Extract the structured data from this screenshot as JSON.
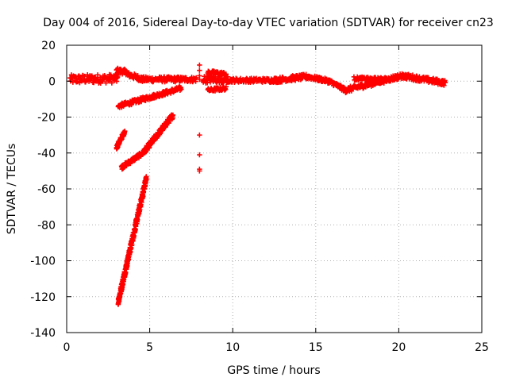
{
  "chart_data": {
    "type": "scatter",
    "title": "Day 004 of 2016, Sidereal Day-to-day VTEC variation (SDTVAR) for receiver cn23",
    "xlabel": "GPS time / hours",
    "ylabel": "SDTVAR / TECUs",
    "xlim": [
      0,
      25
    ],
    "ylim": [
      -140,
      20
    ],
    "xticks": [
      0,
      5,
      10,
      15,
      20,
      25
    ],
    "yticks": [
      20,
      0,
      -20,
      -40,
      -60,
      -80,
      -100,
      -120,
      -140
    ],
    "xtick_labels": [
      "0",
      "5",
      "10",
      "15",
      "20",
      "25"
    ],
    "ytick_labels": [
      "20",
      "0",
      "-20",
      "-40",
      "-60",
      "-80",
      "-100",
      "-120",
      "-140"
    ],
    "grid": true,
    "marker": "+",
    "color": "#ff0000",
    "segments": [
      {
        "x0": 0.2,
        "x1": 3.1,
        "y0": 1,
        "y1": 1.5,
        "jitter": 2.5
      },
      {
        "x0": 3.0,
        "x1": 3.6,
        "y0": 6,
        "y1": 5,
        "jitter": 1.5
      },
      {
        "x0": 3.6,
        "x1": 4.6,
        "y0": 4,
        "y1": 1,
        "jitter": 1.5
      },
      {
        "x0": 4.5,
        "x1": 7.8,
        "y0": 1,
        "y1": 1,
        "jitter": 1.5
      },
      {
        "x0": 3.1,
        "x1": 6.9,
        "y0": -14,
        "y1": -4,
        "jitter": 1.2
      },
      {
        "x0": 3.0,
        "x1": 3.5,
        "y0": -37,
        "y1": -28,
        "jitter": 1.2
      },
      {
        "x0": 3.3,
        "x1": 4.6,
        "y0": -48,
        "y1": -40,
        "jitter": 1.2
      },
      {
        "x0": 4.6,
        "x1": 6.4,
        "y0": -40,
        "y1": -19,
        "jitter": 1.5
      },
      {
        "x0": 3.1,
        "x1": 4.8,
        "y0": -123,
        "y1": -54,
        "jitter": 2.0
      },
      {
        "x0": 8.2,
        "x1": 9.7,
        "y0": 1,
        "y1": 1,
        "jitter": 2.0
      },
      {
        "x0": 8.5,
        "x1": 9.6,
        "y0": 5,
        "y1": 4,
        "jitter": 1.0
      },
      {
        "x0": 8.5,
        "x1": 9.6,
        "y0": -5,
        "y1": -4,
        "jitter": 1.0
      },
      {
        "x0": 9.6,
        "x1": 12.5,
        "y0": 0.5,
        "y1": 0.5,
        "jitter": 1.2
      },
      {
        "x0": 12.5,
        "x1": 14.5,
        "y0": 0.5,
        "y1": 2.5,
        "jitter": 1.5
      },
      {
        "x0": 14.5,
        "x1": 15.8,
        "y0": 2.5,
        "y1": 0,
        "jitter": 1.2
      },
      {
        "x0": 15.8,
        "x1": 16.8,
        "y0": 0,
        "y1": -5,
        "jitter": 1.2
      },
      {
        "x0": 16.8,
        "x1": 20.2,
        "y0": -5,
        "y1": 3,
        "jitter": 1.5
      },
      {
        "x0": 17.3,
        "x1": 19.0,
        "y0": 1.5,
        "y1": 1,
        "jitter": 1.0
      },
      {
        "x0": 20.2,
        "x1": 22.8,
        "y0": 3,
        "y1": -1,
        "jitter": 1.5
      }
    ],
    "points": [
      {
        "x": 8.0,
        "y": 9
      },
      {
        "x": 8.0,
        "y": 6
      },
      {
        "x": 8.0,
        "y": 3
      },
      {
        "x": 8.0,
        "y": 1
      },
      {
        "x": 8.0,
        "y": -30
      },
      {
        "x": 8.0,
        "y": -41
      },
      {
        "x": 8.0,
        "y": -49
      },
      {
        "x": 8.0,
        "y": -50
      }
    ]
  }
}
